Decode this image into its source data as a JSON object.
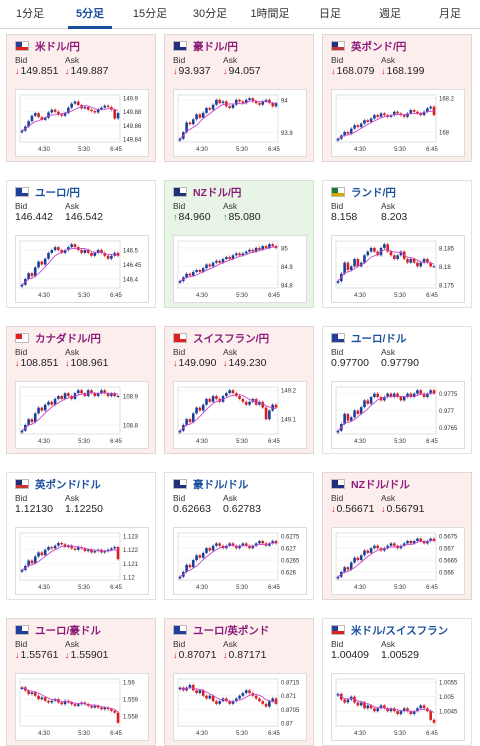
{
  "tabs": [
    {
      "label": "1分足",
      "active": false
    },
    {
      "label": "5分足",
      "active": true
    },
    {
      "label": "15分足",
      "active": false
    },
    {
      "label": "30分足",
      "active": false
    },
    {
      "label": "1時間足",
      "active": false
    },
    {
      "label": "日足",
      "active": false
    },
    {
      "label": "週足",
      "active": false
    },
    {
      "label": "月足",
      "active": false
    }
  ],
  "labels": {
    "bid": "Bid",
    "ask": "Ask"
  },
  "colors": {
    "down_arrow": "#d81b1b",
    "up_arrow": "#1e8c2e",
    "candle_up": "#1a3f99",
    "candle_down": "#d42020",
    "ma_line": "#cc44cc"
  },
  "cards": [
    {
      "pair": "米ドル/円",
      "flag": "us",
      "trend": "down",
      "bid": "149.851",
      "ask": "149.887",
      "bid_arrow": "down",
      "ask_arrow": "down",
      "chart": {
        "x_ticks": [
          "4:30",
          "5:30",
          "6:45"
        ],
        "y_ticks": [
          "149.9",
          "149.88",
          "149.86",
          "149.84"
        ],
        "closes": [
          149.852,
          149.858,
          149.866,
          149.874,
          149.878,
          149.872,
          149.868,
          149.871,
          149.879,
          149.883,
          149.88,
          149.876,
          149.874,
          149.878,
          149.886,
          149.892,
          149.895,
          149.89,
          149.885,
          149.887,
          149.883,
          149.881,
          149.879,
          149.884,
          149.886,
          149.889,
          149.887,
          149.883,
          149.87,
          149.878
        ]
      }
    },
    {
      "pair": "豪ドル/円",
      "flag": "au",
      "trend": "down",
      "bid": "93.937",
      "ask": "94.057",
      "bid_arrow": "down",
      "ask_arrow": "down",
      "chart": {
        "x_ticks": [
          "4:30",
          "5:30",
          "6:45"
        ],
        "y_ticks": [
          "94",
          "93.9"
        ],
        "closes": [
          93.88,
          93.9,
          93.93,
          93.925,
          93.94,
          93.955,
          93.945,
          93.96,
          93.975,
          93.97,
          93.985,
          94.0,
          93.99,
          93.995,
          93.98,
          93.975,
          93.985,
          94.0,
          93.995,
          93.99,
          94.0,
          94.005,
          93.995,
          93.99,
          93.985,
          93.995,
          94.0,
          93.99,
          93.98,
          93.99
        ]
      }
    },
    {
      "pair": "英ポンド/円",
      "flag": "gb",
      "trend": "down",
      "bid": "168.079",
      "ask": "168.199",
      "bid_arrow": "down",
      "ask_arrow": "down",
      "chart": {
        "x_ticks": [
          "4:30",
          "5:30",
          "6:45"
        ],
        "y_ticks": [
          "168.2",
          "168"
        ],
        "closes": [
          167.96,
          167.98,
          168.0,
          167.99,
          168.02,
          168.04,
          168.03,
          168.05,
          168.07,
          168.06,
          168.08,
          168.1,
          168.09,
          168.11,
          168.1,
          168.09,
          168.1,
          168.12,
          168.11,
          168.1,
          168.09,
          168.11,
          168.13,
          168.12,
          168.11,
          168.1,
          168.12,
          168.14,
          168.15,
          168.1
        ]
      }
    },
    {
      "pair": "ユーロ/円",
      "flag": "eu",
      "trend": "flat",
      "bid": "146.442",
      "ask": "146.542",
      "bid_arrow": "",
      "ask_arrow": "",
      "chart": {
        "x_ticks": [
          "4:30",
          "5:30",
          "6:45"
        ],
        "y_ticks": [
          "146.5",
          "146.45",
          "146.4"
        ],
        "closes": [
          146.38,
          146.4,
          146.42,
          146.41,
          146.44,
          146.46,
          146.45,
          146.47,
          146.49,
          146.5,
          146.51,
          146.5,
          146.49,
          146.5,
          146.51,
          146.52,
          146.51,
          146.5,
          146.49,
          146.5,
          146.49,
          146.48,
          146.49,
          146.5,
          146.49,
          146.48,
          146.47,
          146.48,
          146.49,
          146.48
        ]
      }
    },
    {
      "pair": "NZドル/円",
      "flag": "nz",
      "trend": "up",
      "bid": "84.960",
      "ask": "85.080",
      "bid_arrow": "up",
      "ask_arrow": "up",
      "chart": {
        "x_ticks": [
          "4:30",
          "5:30",
          "6:45"
        ],
        "y_ticks": [
          "85",
          "84.9",
          "84.8"
        ],
        "closes": [
          84.82,
          84.84,
          84.86,
          84.85,
          84.87,
          84.88,
          84.87,
          84.89,
          84.91,
          84.9,
          84.92,
          84.93,
          84.92,
          84.94,
          84.95,
          84.94,
          84.96,
          84.97,
          84.96,
          84.97,
          84.98,
          84.99,
          84.98,
          85.0,
          84.99,
          85.01,
          85.0,
          85.02,
          85.01,
          85.0
        ]
      }
    },
    {
      "pair": "ランド/円",
      "flag": "za",
      "trend": "flat",
      "bid": "8.158",
      "ask": "8.203",
      "bid_arrow": "",
      "ask_arrow": "",
      "chart": {
        "x_ticks": [
          "4:30",
          "5:30",
          "6:45"
        ],
        "y_ticks": [
          "8.185",
          "8.18",
          "8.175"
        ],
        "closes": [
          8.176,
          8.178,
          8.181,
          8.179,
          8.18,
          8.182,
          8.18,
          8.181,
          8.183,
          8.184,
          8.185,
          8.184,
          8.183,
          8.185,
          8.186,
          8.184,
          8.183,
          8.182,
          8.183,
          8.184,
          8.182,
          8.181,
          8.182,
          8.181,
          8.18,
          8.181,
          8.182,
          8.181,
          8.18,
          8.18
        ]
      }
    },
    {
      "pair": "カナダドル/円",
      "flag": "ca",
      "trend": "down",
      "bid": "108.851",
      "ask": "108.961",
      "bid_arrow": "down",
      "ask_arrow": "down",
      "chart": {
        "x_ticks": [
          "4:30",
          "5:30",
          "6:45"
        ],
        "y_ticks": [
          "108.9",
          "108.8"
        ],
        "closes": [
          108.78,
          108.8,
          108.82,
          108.81,
          108.84,
          108.86,
          108.85,
          108.87,
          108.88,
          108.87,
          108.89,
          108.9,
          108.89,
          108.91,
          108.9,
          108.89,
          108.91,
          108.92,
          108.91,
          108.9,
          108.92,
          108.91,
          108.9,
          108.91,
          108.92,
          108.91,
          108.9,
          108.91,
          108.9,
          108.9
        ]
      }
    },
    {
      "pair": "スイスフラン/円",
      "flag": "ch",
      "trend": "down",
      "bid": "149.090",
      "ask": "149.230",
      "bid_arrow": "down",
      "ask_arrow": "down",
      "chart": {
        "x_ticks": [
          "4:30",
          "5:30",
          "6:45"
        ],
        "y_ticks": [
          "149.2",
          "149.1"
        ],
        "closes": [
          149.06,
          149.08,
          149.1,
          149.09,
          149.12,
          149.14,
          149.13,
          149.15,
          149.17,
          149.16,
          149.18,
          149.17,
          149.16,
          149.18,
          149.19,
          149.2,
          149.19,
          149.18,
          149.17,
          149.16,
          149.15,
          149.16,
          149.17,
          149.15,
          149.16,
          149.14,
          149.1,
          149.13,
          149.15,
          149.14
        ]
      }
    },
    {
      "pair": "ユーロ/ドル",
      "flag": "eu",
      "trend": "flat",
      "bid": "0.97700",
      "ask": "0.97790",
      "bid_arrow": "",
      "ask_arrow": "",
      "chart": {
        "x_ticks": [
          "4:30",
          "5:30",
          "6:45"
        ],
        "y_ticks": [
          "0.9775",
          "0.977",
          "0.9765"
        ],
        "closes": [
          0.9764,
          0.9766,
          0.9769,
          0.9767,
          0.9768,
          0.977,
          0.9769,
          0.9771,
          0.9773,
          0.9772,
          0.9774,
          0.9775,
          0.9774,
          0.9773,
          0.9774,
          0.9775,
          0.9774,
          0.9775,
          0.9774,
          0.9773,
          0.9774,
          0.9775,
          0.9774,
          0.9775,
          0.9776,
          0.9775,
          0.9774,
          0.9775,
          0.9776,
          0.9775
        ]
      }
    },
    {
      "pair": "英ポンド/ドル",
      "flag": "gb",
      "trend": "flat",
      "bid": "1.12130",
      "ask": "1.12250",
      "bid_arrow": "",
      "ask_arrow": "",
      "chart": {
        "x_ticks": [
          "4:30",
          "5:30",
          "6:45"
        ],
        "y_ticks": [
          "1.123",
          "1.122",
          "1.121",
          "1.12"
        ],
        "closes": [
          1.1205,
          1.1208,
          1.1212,
          1.121,
          1.1215,
          1.1218,
          1.1216,
          1.122,
          1.1222,
          1.1221,
          1.1223,
          1.1225,
          1.1224,
          1.1222,
          1.1223,
          1.1221,
          1.122,
          1.1222,
          1.1221,
          1.1219,
          1.122,
          1.1218,
          1.1219,
          1.122,
          1.1218,
          1.1219,
          1.122,
          1.1221,
          1.1222,
          1.1213
        ]
      }
    },
    {
      "pair": "豪ドル/ドル",
      "flag": "au",
      "trend": "flat",
      "bid": "0.62663",
      "ask": "0.62783",
      "bid_arrow": "",
      "ask_arrow": "",
      "chart": {
        "x_ticks": [
          "4:30",
          "5:30",
          "6:45"
        ],
        "y_ticks": [
          "0.6275",
          "0.627",
          "0.6265",
          "0.626"
        ],
        "closes": [
          0.6258,
          0.626,
          0.6263,
          0.6262,
          0.6265,
          0.6267,
          0.6266,
          0.6268,
          0.627,
          0.6269,
          0.6271,
          0.6272,
          0.6271,
          0.627,
          0.6271,
          0.6272,
          0.6271,
          0.627,
          0.6271,
          0.6272,
          0.6271,
          0.627,
          0.6271,
          0.6272,
          0.6273,
          0.6272,
          0.6271,
          0.6272,
          0.6273,
          0.6272
        ]
      }
    },
    {
      "pair": "NZドル/ドル",
      "flag": "nz",
      "trend": "down",
      "bid": "0.56671",
      "ask": "0.56791",
      "bid_arrow": "down",
      "ask_arrow": "down",
      "chart": {
        "x_ticks": [
          "4:30",
          "5:30",
          "6:45"
        ],
        "y_ticks": [
          "0.5675",
          "0.567",
          "0.5665",
          "0.566"
        ],
        "closes": [
          0.5658,
          0.566,
          0.5662,
          0.5661,
          0.5664,
          0.5666,
          0.5665,
          0.5667,
          0.5669,
          0.5668,
          0.567,
          0.5671,
          0.567,
          0.5669,
          0.567,
          0.5671,
          0.5672,
          0.5671,
          0.567,
          0.5671,
          0.5672,
          0.5673,
          0.5672,
          0.5673,
          0.5674,
          0.5673,
          0.5672,
          0.5673,
          0.5674,
          0.5673
        ]
      }
    },
    {
      "pair": "ユーロ/豪ドル",
      "flag": "eu",
      "trend": "down",
      "bid": "1.55761",
      "ask": "1.55901",
      "bid_arrow": "down",
      "ask_arrow": "down",
      "chart": {
        "x_ticks": [
          "4:30",
          "5:30",
          "6:45"
        ],
        "y_ticks": [
          "1.56",
          "1.559",
          "1.558"
        ],
        "closes": [
          1.5597,
          1.5595,
          1.5593,
          1.5594,
          1.5592,
          1.559,
          1.5591,
          1.5589,
          1.5588,
          1.5589,
          1.559,
          1.5588,
          1.5587,
          1.5589,
          1.5588,
          1.5587,
          1.5586,
          1.5587,
          1.5588,
          1.5587,
          1.5586,
          1.5585,
          1.5586,
          1.5585,
          1.5584,
          1.5585,
          1.5584,
          1.5583,
          1.5582,
          1.5576
        ]
      }
    },
    {
      "pair": "ユーロ/英ポンド",
      "flag": "eu",
      "trend": "down",
      "bid": "0.87071",
      "ask": "0.87171",
      "bid_arrow": "down",
      "ask_arrow": "down",
      "chart": {
        "x_ticks": [
          "4:30",
          "5:30",
          "6:45"
        ],
        "y_ticks": [
          "0.8715",
          "0.871",
          "0.8705",
          "0.87"
        ],
        "closes": [
          0.8713,
          0.8712,
          0.8713,
          0.8714,
          0.8712,
          0.8711,
          0.8712,
          0.871,
          0.8709,
          0.871,
          0.8708,
          0.8707,
          0.8708,
          0.8709,
          0.8708,
          0.8707,
          0.8708,
          0.8709,
          0.871,
          0.8711,
          0.8712,
          0.8711,
          0.871,
          0.8709,
          0.8708,
          0.8707,
          0.8706,
          0.8708,
          0.8709,
          0.8707
        ]
      }
    },
    {
      "pair": "米ドル/スイスフラン",
      "flag": "us",
      "trend": "flat",
      "bid": "1.00409",
      "ask": "1.00529",
      "bid_arrow": "",
      "ask_arrow": "",
      "chart": {
        "x_ticks": [
          "4:30",
          "5:30",
          "6:45"
        ],
        "y_ticks": [
          "1.0055",
          "1.005",
          "1.0045"
        ],
        "closes": [
          1.0051,
          1.0049,
          1.0048,
          1.0049,
          1.005,
          1.0048,
          1.0047,
          1.0048,
          1.0046,
          1.0047,
          1.0046,
          1.0045,
          1.0046,
          1.0047,
          1.0046,
          1.0045,
          1.0046,
          1.0045,
          1.0044,
          1.0045,
          1.0046,
          1.0045,
          1.0044,
          1.0045,
          1.0046,
          1.0047,
          1.0046,
          1.0045,
          1.0042,
          1.0041
        ]
      }
    }
  ]
}
